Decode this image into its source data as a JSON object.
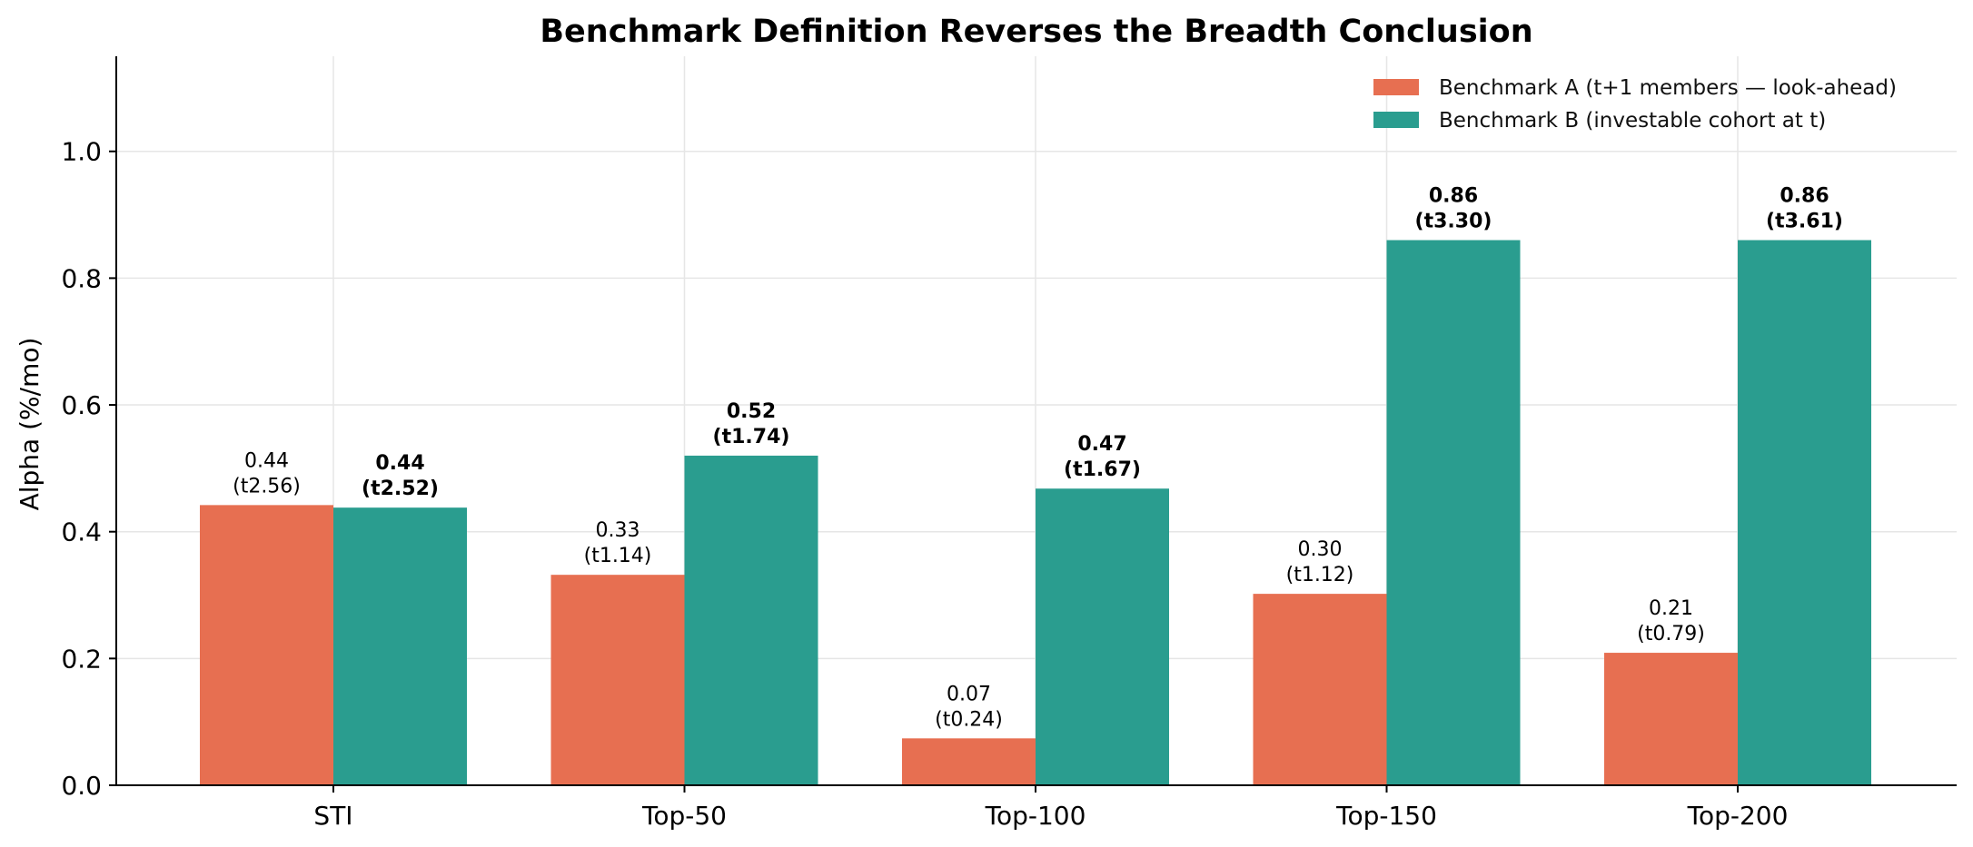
{
  "chart_data": {
    "type": "bar",
    "title": "Benchmark Definition Reverses the Breadth Conclusion",
    "xlabel": "",
    "ylabel": "Alpha (%/mo)",
    "ylim": [
      0,
      1.15
    ],
    "yticks": [
      "0.0",
      "0.2",
      "0.4",
      "0.6",
      "0.8",
      "1.0"
    ],
    "ytick_values": [
      0,
      0.2,
      0.4,
      0.6,
      0.8,
      1.0
    ],
    "grid": true,
    "legend_position": "top-right",
    "categories": [
      "STI",
      "Top-50",
      "Top-100",
      "Top-150",
      "Top-200"
    ],
    "series": [
      {
        "name": "Benchmark A (t+1 members — look-ahead)",
        "color": "#e76f51",
        "values": [
          0.442,
          0.332,
          0.074,
          0.302,
          0.209
        ],
        "labels": [
          "0.44",
          "0.33",
          "0.07",
          "0.30",
          "0.21"
        ],
        "tstats": [
          "(t2.56)",
          "(t1.14)",
          "(t0.24)",
          "(t1.12)",
          "(t0.79)"
        ],
        "bold_labels": false
      },
      {
        "name": "Benchmark B (investable cohort at t)",
        "color": "#2a9d8f",
        "values": [
          0.438,
          0.52,
          0.468,
          0.86,
          0.86
        ],
        "labels": [
          "0.44",
          "0.52",
          "0.47",
          "0.86",
          "0.86"
        ],
        "tstats": [
          "(t2.52)",
          "(t1.74)",
          "(t1.67)",
          "(t3.30)",
          "(t3.61)"
        ],
        "bold_labels": true
      }
    ]
  }
}
